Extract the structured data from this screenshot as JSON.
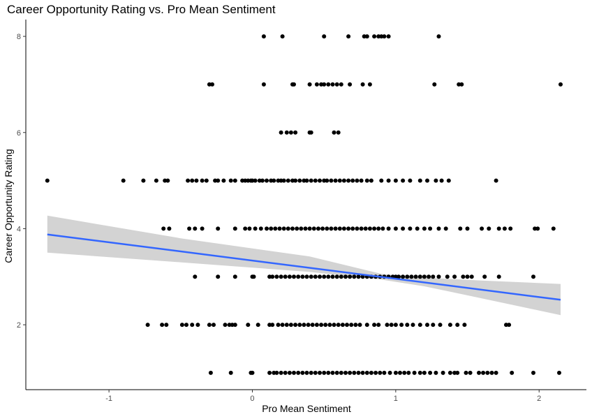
{
  "chart_data": {
    "type": "scatter",
    "title": "Career Opportunity Rating vs. Pro Mean Sentiment",
    "xlabel": "Pro Mean Sentiment",
    "ylabel": "Career Opportunity Rating",
    "xlim": [
      -1.58,
      2.33
    ],
    "ylim": [
      0.65,
      8.35
    ],
    "x_ticks": [
      -1,
      0,
      1,
      2
    ],
    "x_tick_labels": [
      "-1",
      "0",
      "1",
      "2"
    ],
    "y_ticks": [
      2,
      4,
      6,
      8
    ],
    "y_tick_labels": [
      "2",
      "4",
      "6",
      "8"
    ],
    "grid": false,
    "point_color": "#000000",
    "points": [
      {
        "y": 8,
        "x": [
          0.08,
          0.21,
          0.5,
          0.67,
          0.78,
          0.8,
          0.85,
          0.88,
          0.9,
          0.92,
          0.95,
          1.3
        ]
      },
      {
        "y": 7,
        "x": [
          -0.3,
          -0.28,
          0.08,
          0.28,
          0.29,
          0.4,
          0.45,
          0.48,
          0.5,
          0.53,
          0.56,
          0.59,
          0.62,
          0.68,
          0.77,
          0.82,
          1.27,
          1.44,
          1.46,
          2.15
        ]
      },
      {
        "y": 6,
        "x": [
          0.2,
          0.24,
          0.27,
          0.3,
          0.4,
          0.41,
          0.57,
          0.6
        ]
      },
      {
        "y": 5,
        "x": [
          -1.43,
          -0.9,
          -0.76,
          -0.67,
          -0.61,
          -0.59,
          -0.45,
          -0.42,
          -0.39,
          -0.35,
          -0.32,
          -0.26,
          -0.24,
          -0.2,
          -0.15,
          -0.12,
          -0.07,
          -0.05,
          -0.03,
          -0.01,
          0.0,
          0.02,
          0.05,
          0.07,
          0.1,
          0.13,
          0.15,
          0.18,
          0.2,
          0.22,
          0.25,
          0.28,
          0.3,
          0.33,
          0.36,
          0.38,
          0.41,
          0.44,
          0.47,
          0.5,
          0.52,
          0.55,
          0.58,
          0.61,
          0.64,
          0.67,
          0.7,
          0.73,
          0.76,
          0.8,
          0.83,
          0.9,
          0.95,
          1.0,
          1.05,
          1.1,
          1.17,
          1.22,
          1.28,
          1.32,
          1.37,
          1.7
        ]
      },
      {
        "y": 4,
        "x": [
          -0.62,
          -0.58,
          -0.44,
          -0.4,
          -0.35,
          -0.24,
          -0.12,
          -0.05,
          -0.02,
          0.02,
          0.06,
          0.1,
          0.13,
          0.16,
          0.19,
          0.22,
          0.25,
          0.28,
          0.31,
          0.34,
          0.37,
          0.4,
          0.43,
          0.46,
          0.49,
          0.52,
          0.55,
          0.58,
          0.61,
          0.64,
          0.67,
          0.7,
          0.73,
          0.76,
          0.79,
          0.82,
          0.85,
          0.88,
          0.91,
          0.95,
          1.0,
          1.05,
          1.1,
          1.15,
          1.2,
          1.24,
          1.3,
          1.35,
          1.45,
          1.5,
          1.6,
          1.65,
          1.72,
          1.76,
          1.8,
          1.97,
          1.99,
          2.1
        ]
      },
      {
        "y": 3,
        "x": [
          -0.4,
          -0.24,
          -0.12,
          0.0,
          0.01,
          0.12,
          0.14,
          0.17,
          0.2,
          0.23,
          0.26,
          0.29,
          0.32,
          0.35,
          0.38,
          0.41,
          0.44,
          0.47,
          0.5,
          0.53,
          0.56,
          0.59,
          0.62,
          0.65,
          0.68,
          0.71,
          0.74,
          0.77,
          0.8,
          0.83,
          0.86,
          0.89,
          0.92,
          0.95,
          0.98,
          1.0,
          1.02,
          1.05,
          1.08,
          1.11,
          1.14,
          1.17,
          1.2,
          1.23,
          1.26,
          1.3,
          1.36,
          1.41,
          1.47,
          1.5,
          1.53,
          1.62,
          1.72,
          1.96
        ]
      },
      {
        "y": 2,
        "x": [
          -0.73,
          -0.63,
          -0.6,
          -0.49,
          -0.46,
          -0.42,
          -0.38,
          -0.3,
          -0.27,
          -0.19,
          -0.16,
          -0.14,
          -0.12,
          -0.03,
          0.04,
          0.12,
          0.14,
          0.18,
          0.21,
          0.24,
          0.27,
          0.3,
          0.33,
          0.36,
          0.39,
          0.42,
          0.45,
          0.48,
          0.51,
          0.54,
          0.57,
          0.6,
          0.63,
          0.66,
          0.69,
          0.72,
          0.75,
          0.8,
          0.85,
          0.88,
          0.94,
          0.97,
          1.0,
          1.04,
          1.08,
          1.12,
          1.17,
          1.22,
          1.26,
          1.31,
          1.38,
          1.43,
          1.48,
          1.77,
          1.79
        ]
      },
      {
        "y": 1,
        "x": [
          -0.29,
          -0.15,
          -0.01,
          0.0,
          0.12,
          0.15,
          0.17,
          0.2,
          0.23,
          0.26,
          0.29,
          0.32,
          0.35,
          0.38,
          0.41,
          0.44,
          0.47,
          0.5,
          0.53,
          0.56,
          0.59,
          0.62,
          0.65,
          0.68,
          0.71,
          0.74,
          0.77,
          0.8,
          0.83,
          0.86,
          0.89,
          0.92,
          0.96,
          1.0,
          1.03,
          1.06,
          1.09,
          1.13,
          1.17,
          1.2,
          1.24,
          1.28,
          1.33,
          1.38,
          1.41,
          1.43,
          1.49,
          1.52,
          1.58,
          1.61,
          1.64,
          1.67,
          1.7,
          1.81,
          1.96,
          2.14
        ]
      }
    ],
    "fit_line": {
      "color": "#3366FF",
      "x": [
        -1.43,
        2.15
      ],
      "y": [
        3.88,
        2.52
      ]
    },
    "confidence_band": {
      "color": "#d3d3d3",
      "x": [
        -1.43,
        -0.5,
        0.4,
        0.9,
        1.2,
        1.6,
        2.15
      ],
      "upper": [
        4.27,
        3.8,
        3.42,
        3.06,
        2.98,
        2.92,
        2.85
      ],
      "lower": [
        3.5,
        3.3,
        3.1,
        2.94,
        2.8,
        2.55,
        2.2
      ]
    }
  }
}
